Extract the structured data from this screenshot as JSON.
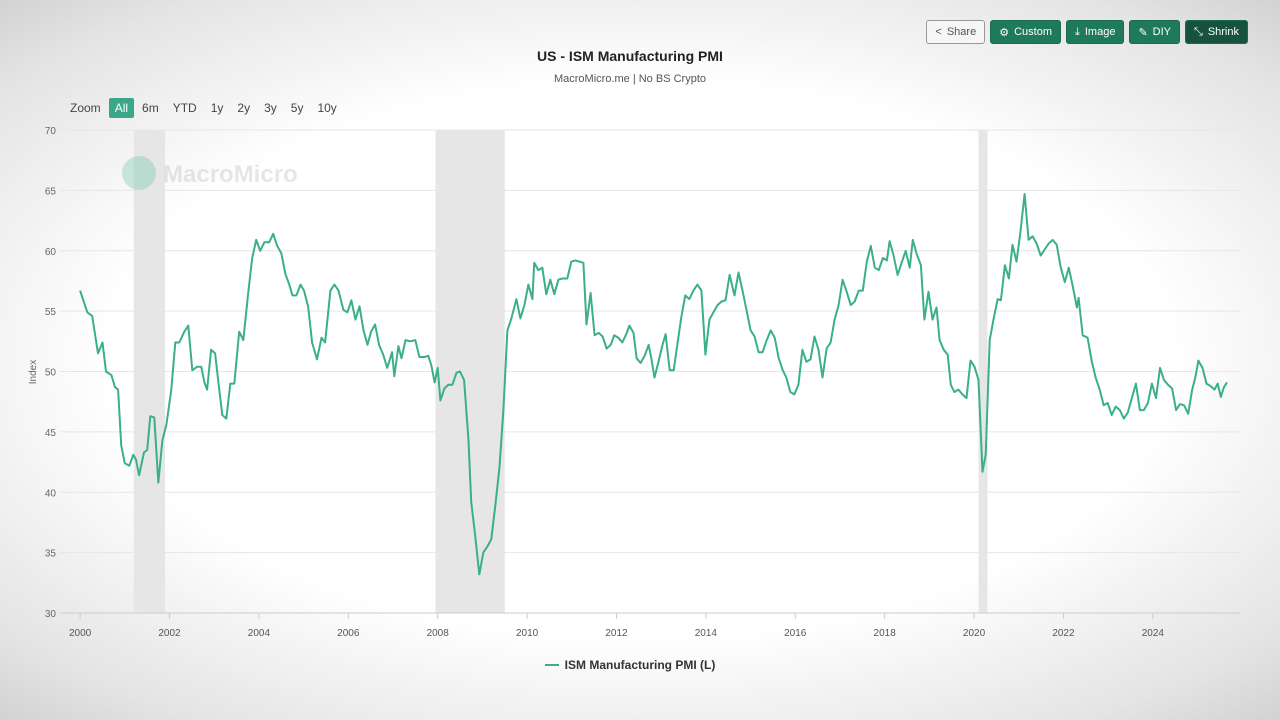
{
  "toolbar": {
    "buttons": [
      {
        "label": "Share",
        "icon": "share-icon"
      },
      {
        "label": "Custom",
        "icon": "gear-icon"
      },
      {
        "label": "Image",
        "icon": "download-icon"
      },
      {
        "label": "DIY",
        "icon": "pencil-icon"
      },
      {
        "label": "Shrink",
        "icon": "shrink-icon"
      }
    ]
  },
  "zoom": {
    "label": "Zoom",
    "options": [
      "All",
      "6m",
      "YTD",
      "1y",
      "2y",
      "3y",
      "5y",
      "10y"
    ],
    "selected": "All"
  },
  "watermark": "MacroMicro",
  "colors": {
    "line": "#3aaf8a",
    "accent": "#1f7a5c",
    "recession": "#e6e6e6"
  },
  "chart_data": {
    "type": "line",
    "title": "US - ISM Manufacturing PMI",
    "subtitle": "MacroMicro.me | No BS Crypto",
    "ylabel": "Index",
    "xlabel": "",
    "ylim": [
      30,
      70
    ],
    "yticks": [
      30,
      35,
      40,
      45,
      50,
      55,
      60,
      65,
      70
    ],
    "xlim": [
      1999.55,
      2025.95
    ],
    "xticks": [
      "2000",
      "2002",
      "2004",
      "2006",
      "2008",
      "2010",
      "2012",
      "2014",
      "2016",
      "2018",
      "2020",
      "2022",
      "2024"
    ],
    "grid": true,
    "legend_position": "bottom",
    "recessions": [
      [
        2001.2,
        2001.9
      ],
      [
        2007.95,
        2009.5
      ],
      [
        2020.1,
        2020.3
      ]
    ],
    "series": [
      {
        "name": "ISM Manufacturing PMI (L)",
        "points": [
          [
            2000.0,
            56.7
          ],
          [
            2000.16,
            54.9
          ],
          [
            2000.27,
            54.6
          ],
          [
            2000.4,
            51.5
          ],
          [
            2000.5,
            52.4
          ],
          [
            2000.58,
            50
          ],
          [
            2000.7,
            49.7
          ],
          [
            2000.78,
            48.7
          ],
          [
            2000.85,
            48.5
          ],
          [
            2000.92,
            43.9
          ],
          [
            2001.0,
            42.4
          ],
          [
            2001.1,
            42.2
          ],
          [
            2001.19,
            43.1
          ],
          [
            2001.25,
            42.7
          ],
          [
            2001.32,
            41.4
          ],
          [
            2001.43,
            43.3
          ],
          [
            2001.5,
            43.5
          ],
          [
            2001.57,
            46.3
          ],
          [
            2001.66,
            46.2
          ],
          [
            2001.75,
            40.8
          ],
          [
            2001.84,
            44.3
          ],
          [
            2001.93,
            45.6
          ],
          [
            2002.04,
            48.5
          ],
          [
            2002.13,
            52.4
          ],
          [
            2002.22,
            52.4
          ],
          [
            2002.33,
            53.3
          ],
          [
            2002.42,
            53.8
          ],
          [
            2002.51,
            50.1
          ],
          [
            2002.62,
            50.4
          ],
          [
            2002.71,
            50.4
          ],
          [
            2002.78,
            49.1
          ],
          [
            2002.84,
            48.5
          ],
          [
            2002.93,
            51.8
          ],
          [
            2003.02,
            51.5
          ],
          [
            2003.11,
            48.6
          ],
          [
            2003.18,
            46.4
          ],
          [
            2003.27,
            46.1
          ],
          [
            2003.36,
            49
          ],
          [
            2003.45,
            49
          ],
          [
            2003.56,
            53.3
          ],
          [
            2003.65,
            52.6
          ],
          [
            2003.76,
            56.5
          ],
          [
            2003.85,
            59.4
          ],
          [
            2003.94,
            60.9
          ],
          [
            2004.03,
            60
          ],
          [
            2004.12,
            60.7
          ],
          [
            2004.23,
            60.7
          ],
          [
            2004.32,
            61.4
          ],
          [
            2004.41,
            60.4
          ],
          [
            2004.5,
            59.8
          ],
          [
            2004.59,
            58.1
          ],
          [
            2004.68,
            57.2
          ],
          [
            2004.75,
            56.3
          ],
          [
            2004.84,
            56.3
          ],
          [
            2004.93,
            57.2
          ],
          [
            2005.01,
            56.7
          ],
          [
            2005.1,
            55.4
          ],
          [
            2005.19,
            52.4
          ],
          [
            2005.3,
            51
          ],
          [
            2005.4,
            52.8
          ],
          [
            2005.48,
            52.4
          ],
          [
            2005.6,
            56.7
          ],
          [
            2005.69,
            57.2
          ],
          [
            2005.78,
            56.7
          ],
          [
            2005.89,
            55.1
          ],
          [
            2005.98,
            54.9
          ],
          [
            2006.07,
            55.9
          ],
          [
            2006.16,
            54.3
          ],
          [
            2006.25,
            55.4
          ],
          [
            2006.34,
            53.4
          ],
          [
            2006.43,
            52.2
          ],
          [
            2006.51,
            53.3
          ],
          [
            2006.6,
            53.9
          ],
          [
            2006.69,
            52.2
          ],
          [
            2006.78,
            51.4
          ],
          [
            2006.87,
            50.3
          ],
          [
            2006.98,
            51.6
          ],
          [
            2007.03,
            49.6
          ],
          [
            2007.12,
            52.1
          ],
          [
            2007.19,
            51.1
          ],
          [
            2007.28,
            52.6
          ],
          [
            2007.39,
            52.5
          ],
          [
            2007.5,
            52.6
          ],
          [
            2007.59,
            51.2
          ],
          [
            2007.7,
            51.2
          ],
          [
            2007.79,
            51.3
          ],
          [
            2007.86,
            50.5
          ],
          [
            2007.93,
            49.1
          ],
          [
            2008.0,
            50.3
          ],
          [
            2008.06,
            47.6
          ],
          [
            2008.15,
            48.6
          ],
          [
            2008.24,
            48.9
          ],
          [
            2008.33,
            48.9
          ],
          [
            2008.42,
            49.9
          ],
          [
            2008.5,
            50
          ],
          [
            2008.59,
            49.3
          ],
          [
            2008.69,
            44.3
          ],
          [
            2008.75,
            39.2
          ],
          [
            2008.84,
            36.4
          ],
          [
            2008.93,
            33.2
          ],
          [
            2009.02,
            35
          ],
          [
            2009.11,
            35.5
          ],
          [
            2009.2,
            36.1
          ],
          [
            2009.29,
            38.9
          ],
          [
            2009.38,
            42
          ],
          [
            2009.47,
            46.8
          ],
          [
            2009.56,
            53.4
          ],
          [
            2009.65,
            54.4
          ],
          [
            2009.76,
            56
          ],
          [
            2009.85,
            54.4
          ],
          [
            2009.94,
            55.5
          ],
          [
            2010.03,
            57.2
          ],
          [
            2010.12,
            56
          ],
          [
            2010.16,
            59
          ],
          [
            2010.25,
            58.4
          ],
          [
            2010.34,
            58.6
          ],
          [
            2010.43,
            56.4
          ],
          [
            2010.52,
            57.6
          ],
          [
            2010.61,
            56.4
          ],
          [
            2010.7,
            57.6
          ],
          [
            2010.79,
            57.7
          ],
          [
            2010.9,
            57.7
          ],
          [
            2010.99,
            59.1
          ],
          [
            2011.08,
            59.2
          ],
          [
            2011.17,
            59.1
          ],
          [
            2011.26,
            59
          ],
          [
            2011.33,
            53.9
          ],
          [
            2011.42,
            56.5
          ],
          [
            2011.51,
            53
          ],
          [
            2011.6,
            53.2
          ],
          [
            2011.69,
            52.9
          ],
          [
            2011.78,
            51.9
          ],
          [
            2011.87,
            52.2
          ],
          [
            2011.95,
            53
          ],
          [
            2012.04,
            52.8
          ],
          [
            2012.13,
            52.4
          ],
          [
            2012.22,
            53.1
          ],
          [
            2012.29,
            53.8
          ],
          [
            2012.38,
            53.2
          ],
          [
            2012.45,
            51.1
          ],
          [
            2012.54,
            50.7
          ],
          [
            2012.63,
            51.3
          ],
          [
            2012.72,
            52.2
          ],
          [
            2012.78,
            51.1
          ],
          [
            2012.85,
            49.5
          ],
          [
            2012.94,
            50.8
          ],
          [
            2013.03,
            52.2
          ],
          [
            2013.1,
            53.1
          ],
          [
            2013.19,
            50.1
          ],
          [
            2013.28,
            50.1
          ],
          [
            2013.36,
            52.2
          ],
          [
            2013.45,
            54.5
          ],
          [
            2013.54,
            56.3
          ],
          [
            2013.63,
            56
          ],
          [
            2013.72,
            56.7
          ],
          [
            2013.81,
            57.2
          ],
          [
            2013.9,
            56.7
          ],
          [
            2013.99,
            51.4
          ],
          [
            2014.08,
            54.3
          ],
          [
            2014.17,
            54.9
          ],
          [
            2014.26,
            55.5
          ],
          [
            2014.35,
            55.8
          ],
          [
            2014.44,
            55.9
          ],
          [
            2014.53,
            58
          ],
          [
            2014.64,
            56.3
          ],
          [
            2014.73,
            58.2
          ],
          [
            2014.82,
            56.7
          ],
          [
            2014.91,
            55.1
          ],
          [
            2015.0,
            53.4
          ],
          [
            2015.09,
            52.9
          ],
          [
            2015.18,
            51.6
          ],
          [
            2015.27,
            51.6
          ],
          [
            2015.36,
            52.6
          ],
          [
            2015.45,
            53.4
          ],
          [
            2015.54,
            52.8
          ],
          [
            2015.63,
            51.1
          ],
          [
            2015.72,
            50.1
          ],
          [
            2015.8,
            49.5
          ],
          [
            2015.89,
            48.3
          ],
          [
            2015.98,
            48.1
          ],
          [
            2016.07,
            48.9
          ],
          [
            2016.16,
            51.8
          ],
          [
            2016.25,
            50.8
          ],
          [
            2016.34,
            51
          ],
          [
            2016.43,
            52.9
          ],
          [
            2016.52,
            51.8
          ],
          [
            2016.61,
            49.5
          ],
          [
            2016.7,
            51.9
          ],
          [
            2016.79,
            52.4
          ],
          [
            2016.88,
            54.3
          ],
          [
            2016.97,
            55.5
          ],
          [
            2017.06,
            57.6
          ],
          [
            2017.15,
            56.6
          ],
          [
            2017.24,
            55.5
          ],
          [
            2017.33,
            55.8
          ],
          [
            2017.42,
            56.7
          ],
          [
            2017.51,
            56.7
          ],
          [
            2017.6,
            59.1
          ],
          [
            2017.69,
            60.4
          ],
          [
            2017.78,
            58.6
          ],
          [
            2017.87,
            58.4
          ],
          [
            2017.96,
            59.4
          ],
          [
            2018.05,
            59.2
          ],
          [
            2018.11,
            60.8
          ],
          [
            2018.2,
            59.6
          ],
          [
            2018.29,
            58
          ],
          [
            2018.38,
            59
          ],
          [
            2018.47,
            60
          ],
          [
            2018.56,
            58.6
          ],
          [
            2018.63,
            60.9
          ],
          [
            2018.72,
            59.7
          ],
          [
            2018.81,
            58.8
          ],
          [
            2018.89,
            54.3
          ],
          [
            2018.98,
            56.6
          ],
          [
            2019.07,
            54.3
          ],
          [
            2019.16,
            55.3
          ],
          [
            2019.23,
            52.6
          ],
          [
            2019.32,
            51.8
          ],
          [
            2019.41,
            51.4
          ],
          [
            2019.48,
            48.9
          ],
          [
            2019.56,
            48.3
          ],
          [
            2019.65,
            48.5
          ],
          [
            2019.74,
            48.1
          ],
          [
            2019.83,
            47.8
          ],
          [
            2019.92,
            50.9
          ],
          [
            2020.01,
            50.4
          ],
          [
            2020.1,
            49.3
          ],
          [
            2020.19,
            41.7
          ],
          [
            2020.26,
            43.1
          ],
          [
            2020.35,
            52.6
          ],
          [
            2020.44,
            54.4
          ],
          [
            2020.53,
            56
          ],
          [
            2020.6,
            55.9
          ],
          [
            2020.69,
            58.8
          ],
          [
            2020.78,
            57.7
          ],
          [
            2020.86,
            60.5
          ],
          [
            2020.95,
            59.1
          ],
          [
            2021.04,
            61.6
          ],
          [
            2021.13,
            64.7
          ],
          [
            2021.22,
            60.9
          ],
          [
            2021.31,
            61.2
          ],
          [
            2021.4,
            60.6
          ],
          [
            2021.49,
            59.6
          ],
          [
            2021.58,
            60.1
          ],
          [
            2021.67,
            60.6
          ],
          [
            2021.76,
            60.9
          ],
          [
            2021.85,
            60.5
          ],
          [
            2021.94,
            58.6
          ],
          [
            2022.03,
            57.4
          ],
          [
            2022.12,
            58.6
          ],
          [
            2022.2,
            57.2
          ],
          [
            2022.3,
            55.3
          ],
          [
            2022.34,
            56.1
          ],
          [
            2022.43,
            53
          ],
          [
            2022.54,
            52.8
          ],
          [
            2022.63,
            50.9
          ],
          [
            2022.72,
            49.5
          ],
          [
            2022.81,
            48.5
          ],
          [
            2022.9,
            47.2
          ],
          [
            2022.99,
            47.4
          ],
          [
            2023.08,
            46.4
          ],
          [
            2023.17,
            47.1
          ],
          [
            2023.26,
            46.8
          ],
          [
            2023.35,
            46.1
          ],
          [
            2023.44,
            46.6
          ],
          [
            2023.53,
            47.8
          ],
          [
            2023.62,
            49
          ],
          [
            2023.71,
            46.8
          ],
          [
            2023.8,
            46.8
          ],
          [
            2023.89,
            47.4
          ],
          [
            2023.98,
            49
          ],
          [
            2024.07,
            47.8
          ],
          [
            2024.16,
            50.3
          ],
          [
            2024.25,
            49.3
          ],
          [
            2024.34,
            48.9
          ],
          [
            2024.43,
            48.6
          ],
          [
            2024.52,
            46.8
          ],
          [
            2024.61,
            47.3
          ],
          [
            2024.7,
            47.2
          ],
          [
            2024.79,
            46.5
          ],
          [
            2024.88,
            48.5
          ],
          [
            2024.95,
            49.5
          ],
          [
            2025.02,
            50.9
          ],
          [
            2025.11,
            50.3
          ],
          [
            2025.2,
            49
          ],
          [
            2025.29,
            48.8
          ],
          [
            2025.38,
            48.5
          ],
          [
            2025.45,
            49
          ],
          [
            2025.52,
            47.9
          ],
          [
            2025.59,
            48.7
          ],
          [
            2025.66,
            49.1
          ]
        ]
      }
    ]
  }
}
